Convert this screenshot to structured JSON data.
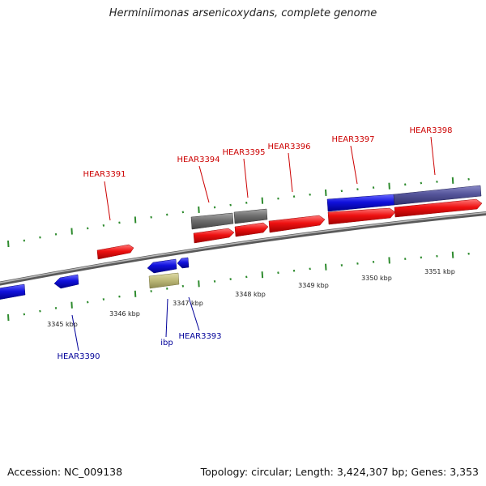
{
  "title": "Herminiimonas arsenicoxydans, complete genome",
  "footer": {
    "accession": "Accession: NC_009138",
    "summary": "Topology: circular; Length: 3,424,307 bp; Genes: 3,353"
  },
  "colors": {
    "forward_gene": "#ee1111",
    "forward_other": "#6e6e6e",
    "reverse_gene": "#1111dd",
    "reverse_other": "#bfbb7a",
    "forward_label": "#cc0000",
    "reverse_label": "#000099",
    "tick": "#2e8b2e",
    "backbone": "#8a8a8a",
    "overlay_band": "#55559a"
  },
  "kbp_labels": [
    "3345 kbp",
    "3346 kbp",
    "3347 kbp",
    "3348 kbp",
    "3349 kbp",
    "3350 kbp",
    "3351 kbp"
  ],
  "gene_labels_forward": [
    "HEAR3391",
    "HEAR3394",
    "HEAR3395",
    "HEAR3396",
    "HEAR3397",
    "HEAR3398"
  ],
  "gene_labels_reverse": [
    "HEAR3390",
    "ibp",
    "HEAR3393"
  ]
}
